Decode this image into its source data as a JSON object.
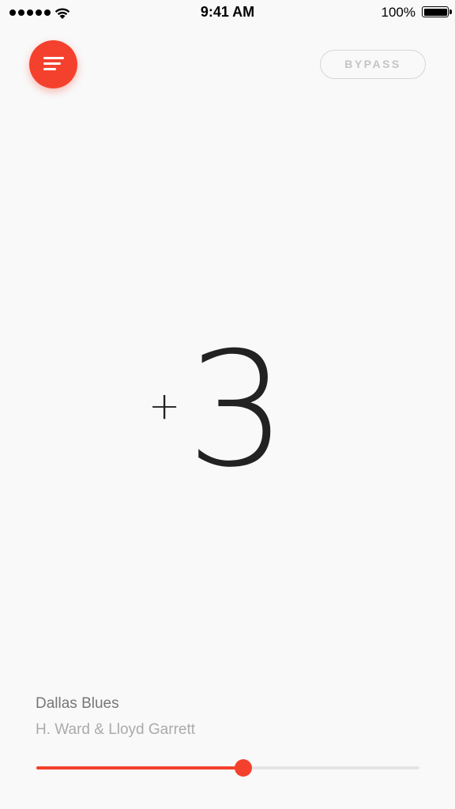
{
  "status_bar": {
    "time": "9:41 AM",
    "battery_percent": "100%",
    "signal_icon": "signal-dots-icon",
    "wifi_icon": "wifi-icon",
    "battery_icon": "battery-icon"
  },
  "header": {
    "menu_icon": "menu-icon",
    "bypass_label": "BYPASS"
  },
  "transpose": {
    "sign": "+",
    "value": "3"
  },
  "now_playing": {
    "title": "Dallas Blues",
    "artist": "H. Ward & Lloyd Garrett",
    "progress": 0.54
  },
  "colors": {
    "accent": "#f4412d",
    "background": "#f9f9f9",
    "text": "#222222",
    "muted": "#777777"
  }
}
